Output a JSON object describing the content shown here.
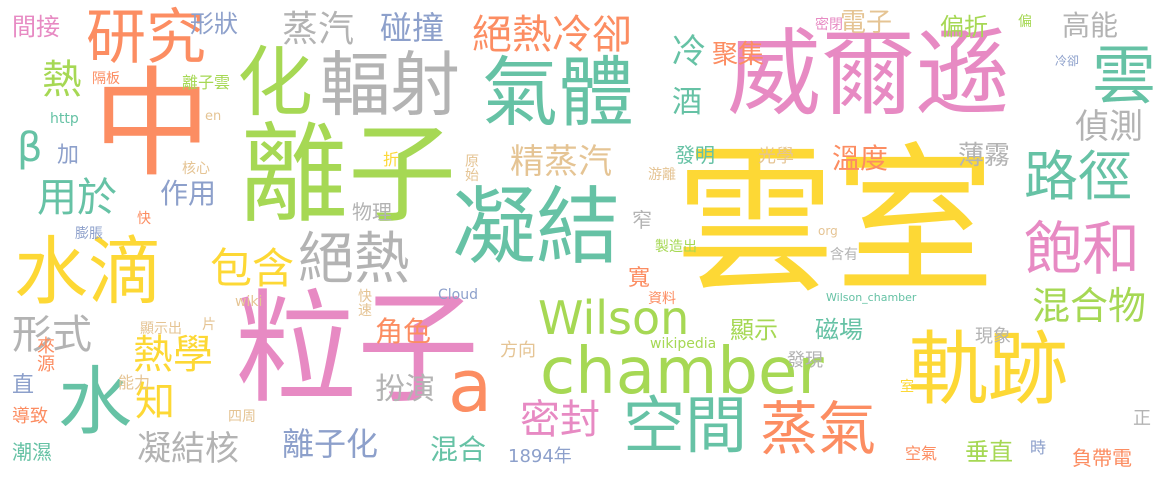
{
  "palette": {
    "yellow": "#fdd835",
    "pink": "#e78ac3",
    "orange": "#fc8d62",
    "green": "#66c2a5",
    "lime": "#a6d854",
    "blue": "#8da0cb",
    "tan": "#e5c494",
    "gray": "#b3b3b3"
  },
  "words": [
    {
      "text": "雲室",
      "color": "yellow"
    },
    {
      "text": "粒子",
      "color": "pink"
    },
    {
      "text": "威爾遜",
      "color": "pink"
    },
    {
      "text": "中",
      "color": "orange"
    },
    {
      "text": "離子",
      "color": "lime"
    },
    {
      "text": "氣體",
      "color": "green"
    },
    {
      "text": "凝結",
      "color": "green"
    },
    {
      "text": "chamber",
      "color": "lime"
    },
    {
      "text": "軌跡",
      "color": "yellow"
    },
    {
      "text": "化",
      "color": "lime"
    },
    {
      "text": "輻射",
      "color": "gray"
    },
    {
      "text": "水滴",
      "color": "yellow"
    },
    {
      "text": "研究",
      "color": "orange"
    },
    {
      "text": "a",
      "color": "orange"
    },
    {
      "text": "空間",
      "color": "green"
    },
    {
      "text": "蒸氣",
      "color": "orange"
    },
    {
      "text": "水",
      "color": "green"
    },
    {
      "text": "絕熱",
      "color": "gray"
    },
    {
      "text": "雲",
      "color": "green"
    },
    {
      "text": "路徑",
      "color": "green"
    },
    {
      "text": "飽和",
      "color": "pink"
    },
    {
      "text": "Wilson",
      "color": "lime"
    },
    {
      "text": "絕熱冷卻",
      "color": "orange"
    },
    {
      "text": "蒸汽",
      "color": "gray"
    },
    {
      "text": "碰撞",
      "color": "blue"
    },
    {
      "text": "冷",
      "color": "green"
    },
    {
      "text": "酒",
      "color": "green"
    },
    {
      "text": "精蒸汽",
      "color": "tan"
    },
    {
      "text": "溫度",
      "color": "orange"
    },
    {
      "text": "包含",
      "color": "yellow"
    },
    {
      "text": "熱學",
      "color": "yellow"
    },
    {
      "text": "知",
      "color": "yellow"
    },
    {
      "text": "密封",
      "color": "pink"
    },
    {
      "text": "混合物",
      "color": "lime"
    },
    {
      "text": "偵測",
      "color": "gray"
    },
    {
      "text": "高能",
      "color": "gray"
    },
    {
      "text": "形式",
      "color": "gray"
    },
    {
      "text": "用於",
      "color": "green"
    },
    {
      "text": "作用",
      "color": "blue"
    },
    {
      "text": "熱",
      "color": "lime"
    },
    {
      "text": "β",
      "color": "green"
    },
    {
      "text": "凝結核",
      "color": "gray"
    },
    {
      "text": "離子化",
      "color": "blue"
    },
    {
      "text": "角色",
      "color": "orange"
    },
    {
      "text": "扮演",
      "color": "gray"
    },
    {
      "text": "顯示",
      "color": "lime"
    },
    {
      "text": "磁場",
      "color": "green"
    },
    {
      "text": "混合",
      "color": "green"
    },
    {
      "text": "垂直",
      "color": "lime"
    },
    {
      "text": "薄霧",
      "color": "gray"
    },
    {
      "text": "電子",
      "color": "tan"
    },
    {
      "text": "聚集",
      "color": "orange"
    },
    {
      "text": "偏折",
      "color": "lime"
    },
    {
      "text": "形狀",
      "color": "blue"
    },
    {
      "text": "間接",
      "color": "pink"
    },
    {
      "text": "負帶電",
      "color": "orange"
    },
    {
      "text": "潮濕",
      "color": "green"
    },
    {
      "text": "直",
      "color": "blue"
    },
    {
      "text": "加",
      "color": "blue"
    },
    {
      "text": "物理",
      "color": "gray"
    },
    {
      "text": "窄",
      "color": "gray"
    },
    {
      "text": "寬",
      "color": "orange"
    },
    {
      "text": "發明",
      "color": "green"
    },
    {
      "text": "光學",
      "color": "tan"
    },
    {
      "text": "發現",
      "color": "gray"
    },
    {
      "text": "現象",
      "color": "gray"
    },
    {
      "text": "1894年",
      "color": "blue"
    },
    {
      "text": "方向",
      "color": "tan"
    },
    {
      "text": "正",
      "color": "gray"
    },
    {
      "text": "時",
      "color": "blue"
    },
    {
      "text": "空氣",
      "color": "orange"
    },
    {
      "text": "來源",
      "color": "orange"
    },
    {
      "text": "導致",
      "color": "orange"
    },
    {
      "text": "能力",
      "color": "tan"
    },
    {
      "text": "四周",
      "color": "tan"
    },
    {
      "text": "顯示出",
      "color": "tan"
    },
    {
      "text": "片",
      "color": "tan"
    },
    {
      "text": "快速",
      "color": "tan"
    },
    {
      "text": "Cloud",
      "color": "blue"
    },
    {
      "text": "資料",
      "color": "orange"
    },
    {
      "text": "wikipedia",
      "color": "lime"
    },
    {
      "text": "Wilson_chamber",
      "color": "green"
    },
    {
      "text": "wiki",
      "color": "tan"
    },
    {
      "text": "膨脹",
      "color": "blue"
    },
    {
      "text": "快",
      "color": "orange"
    },
    {
      "text": "核心",
      "color": "tan"
    },
    {
      "text": "折",
      "color": "yellow"
    },
    {
      "text": "原始",
      "color": "tan"
    },
    {
      "text": "游離",
      "color": "tan"
    },
    {
      "text": "製造出",
      "color": "lime"
    },
    {
      "text": "org",
      "color": "tan"
    },
    {
      "text": "含有",
      "color": "gray"
    },
    {
      "text": "冷卻",
      "color": "blue"
    },
    {
      "text": "密閉",
      "color": "pink"
    },
    {
      "text": "偏",
      "color": "lime"
    },
    {
      "text": "隔板",
      "color": "orange"
    },
    {
      "text": "離子雲",
      "color": "lime"
    },
    {
      "text": "http",
      "color": "green"
    },
    {
      "text": "en",
      "color": "tan"
    },
    {
      "text": "室",
      "color": "yellow"
    }
  ]
}
